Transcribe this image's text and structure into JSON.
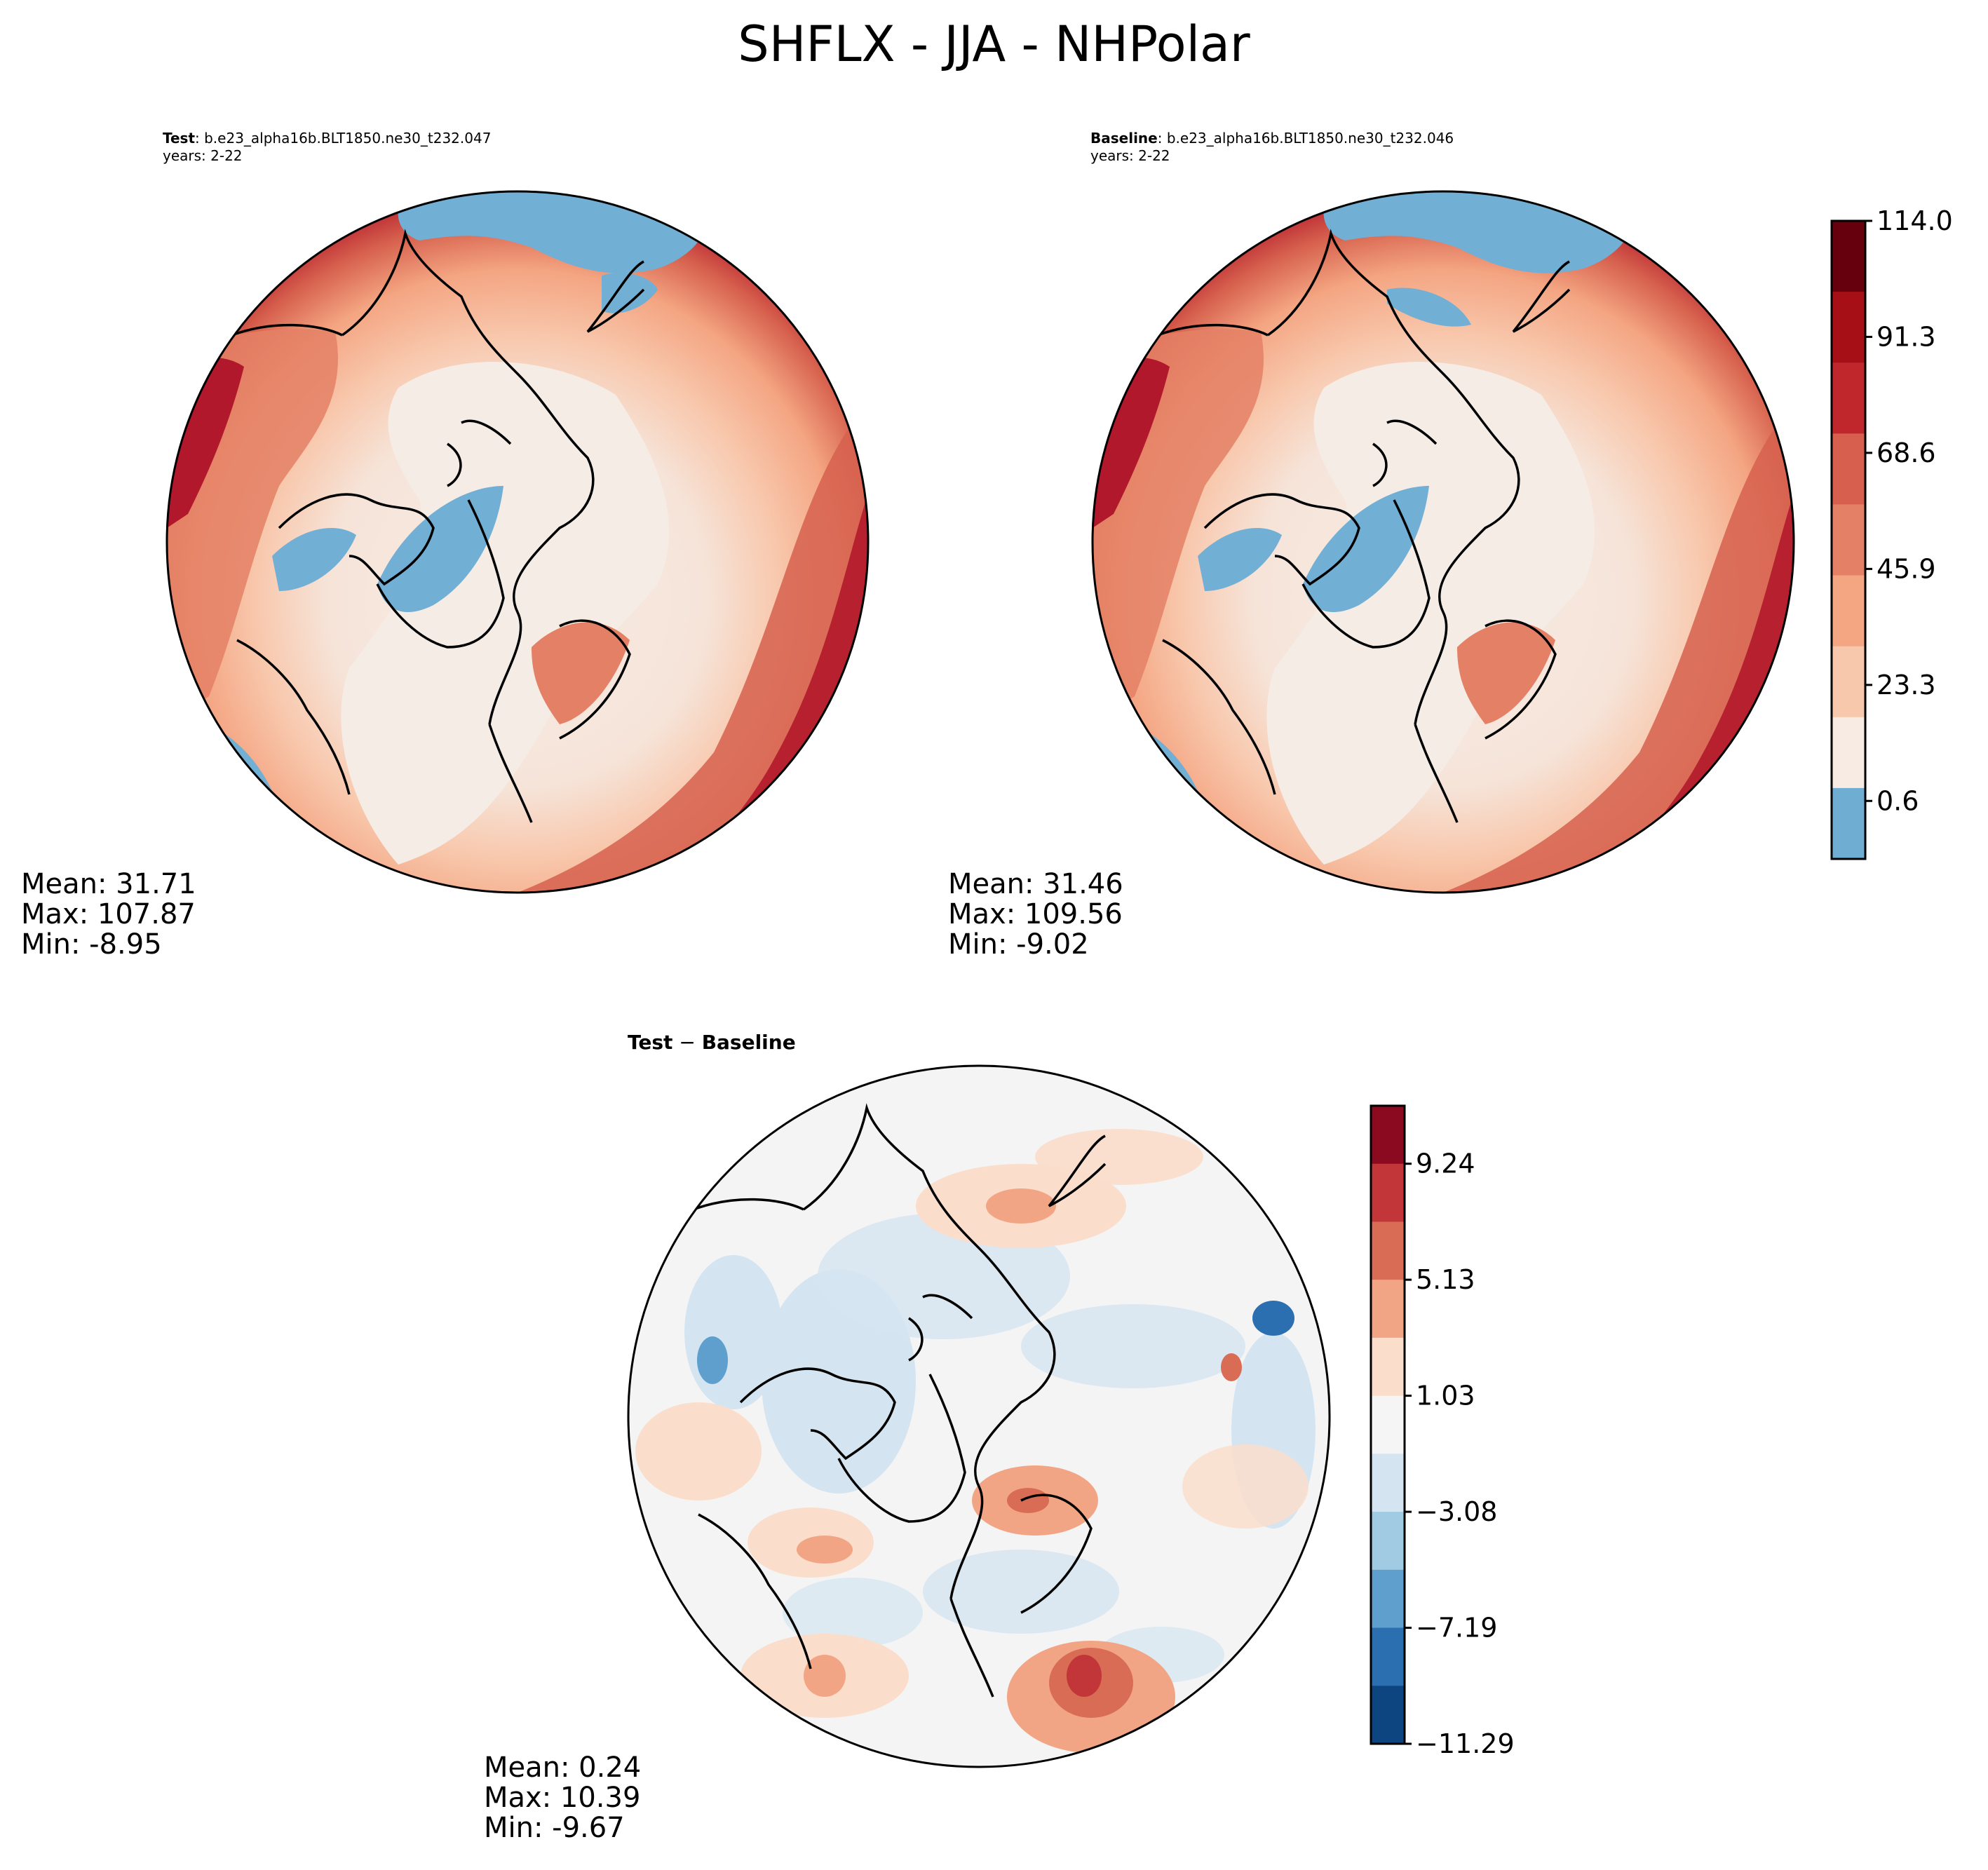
{
  "figure": {
    "title": "SHFLX - JJA - NHPolar"
  },
  "panels": {
    "test": {
      "label": "Test",
      "case": ": b.e23_alpha16b.BLT1850.ne30_t232.047",
      "years": "years: 2-22",
      "stats": {
        "mean": "Mean: 31.71",
        "max": "Max: 107.87",
        "min": "Min: -8.95"
      }
    },
    "baseline": {
      "label": "Baseline",
      "case": ": b.e23_alpha16b.BLT1850.ne30_t232.046",
      "years": "years: 2-22",
      "stats": {
        "mean": "Mean: 31.46",
        "max": "Max: 109.56",
        "min": "Min: -9.02"
      }
    },
    "diff": {
      "title_a": "Test",
      "title_op": " − ",
      "title_b": "Baseline",
      "stats": {
        "mean": "Mean:  0.24",
        "max": "Max: 10.39",
        "min": "Min: -9.67"
      }
    }
  },
  "chart_data": [
    {
      "type": "heatmap",
      "panel": "test",
      "projection": "north-polar-stereographic",
      "colormap": "RdBu_r",
      "levels_ticks": [
        "0.6",
        "23.3",
        "45.9",
        "68.6",
        "91.3",
        "114.0"
      ],
      "summary": {
        "mean": 31.71,
        "max": 107.87,
        "min": -8.95
      }
    },
    {
      "type": "heatmap",
      "panel": "baseline",
      "projection": "north-polar-stereographic",
      "colormap": "RdBu_r",
      "levels_ticks": [
        "0.6",
        "23.3",
        "45.9",
        "68.6",
        "91.3",
        "114.0"
      ],
      "summary": {
        "mean": 31.46,
        "max": 109.56,
        "min": -9.02
      }
    },
    {
      "type": "heatmap",
      "panel": "diff",
      "projection": "north-polar-stereographic",
      "colormap": "RdBu_r",
      "levels_ticks": [
        "9.24",
        "5.13",
        "1.03",
        "−3.08",
        "−7.19",
        "−11.29"
      ],
      "summary": {
        "mean": 0.24,
        "max": 10.39,
        "min": -9.67
      }
    }
  ],
  "colorbars": {
    "main": {
      "colors": [
        "#67000d",
        "#a50f15",
        "#c0272d",
        "#d6604d",
        "#e48065",
        "#f4a582",
        "#f8c8ad",
        "#f7ebe3",
        "#70add3"
      ],
      "ticks": [
        {
          "label": "114.0",
          "frac": 0.0
        },
        {
          "label": "91.3",
          "frac": 0.1818
        },
        {
          "label": "68.6",
          "frac": 0.3636
        },
        {
          "label": "45.9",
          "frac": 0.5455
        },
        {
          "label": "23.3",
          "frac": 0.7273
        },
        {
          "label": "0.6",
          "frac": 0.9091
        }
      ]
    },
    "diff": {
      "colors": [
        "#8b0a20",
        "#c2363a",
        "#d96c55",
        "#f2a584",
        "#fbddcb",
        "#f5f5f5",
        "#d4e5f1",
        "#a1cbe3",
        "#5e9fcd",
        "#2b6fb0",
        "#0d4580"
      ],
      "ticks": [
        {
          "label": "9.24",
          "frac": 0.0909
        },
        {
          "label": "5.13",
          "frac": 0.2727
        },
        {
          "label": "1.03",
          "frac": 0.4545
        },
        {
          "label": "−3.08",
          "frac": 0.6364
        },
        {
          "label": "−7.19",
          "frac": 0.8182
        },
        {
          "label": "−11.29",
          "frac": 1.0
        }
      ]
    }
  },
  "colors": {
    "land_low": "#f6ece6",
    "ice_blue": "#72afd4",
    "warm": "#f4a582",
    "warm_strong": "#d6604d",
    "hot": "#b2182b",
    "diff_bg": "#f4f4f4",
    "coast": "#000000"
  }
}
